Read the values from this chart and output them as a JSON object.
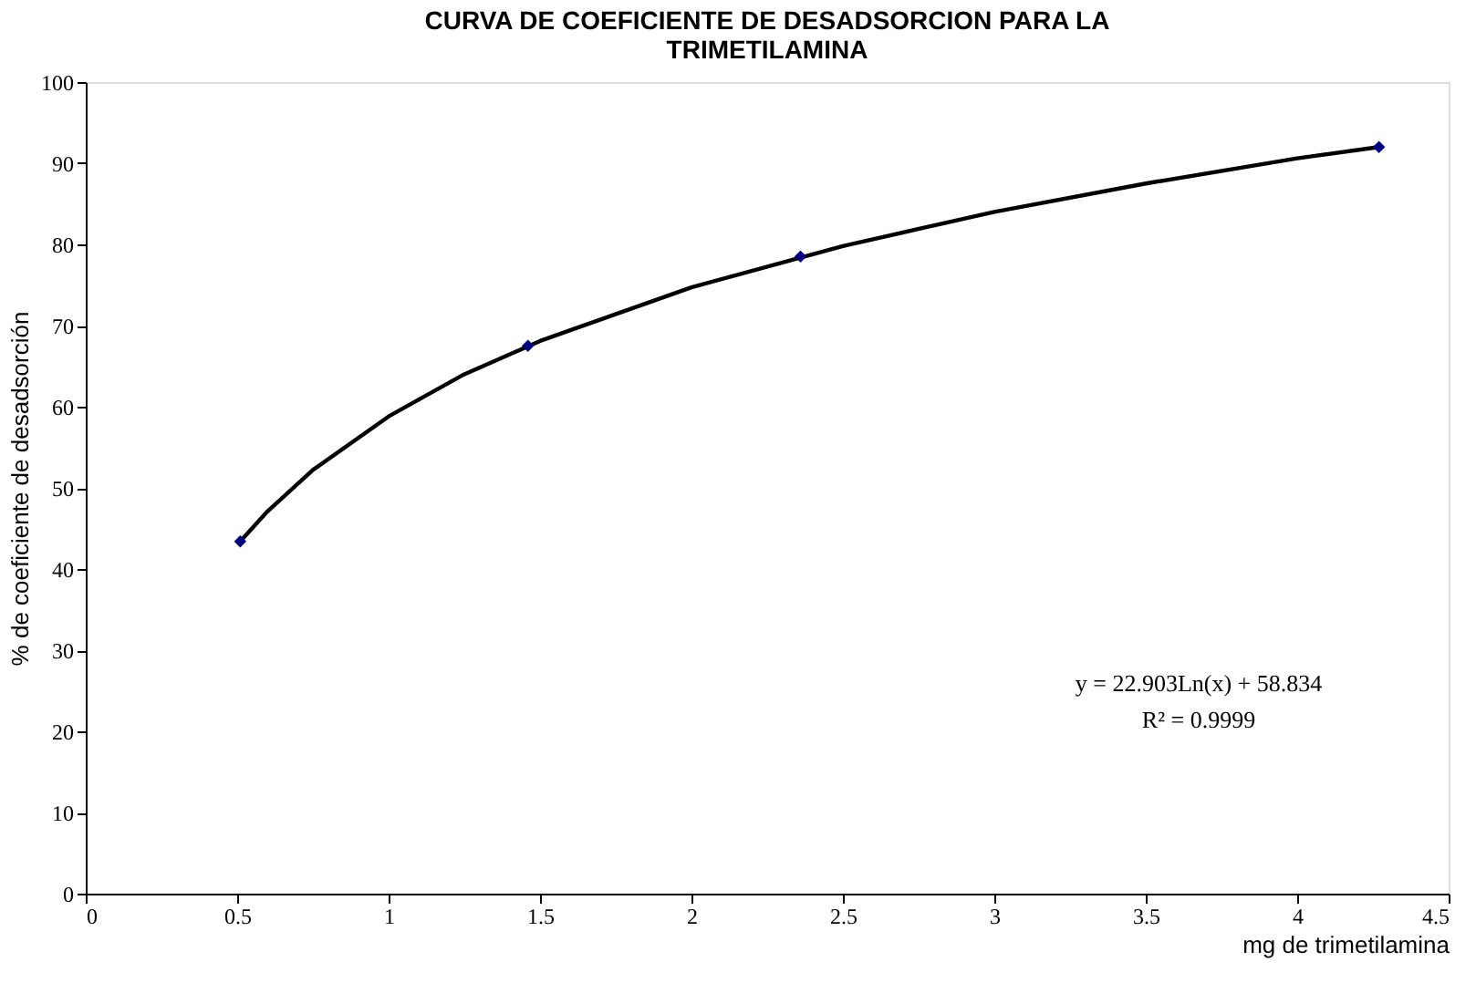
{
  "chart_data": {
    "type": "scatter",
    "title": [
      "CURVA DE COEFICIENTE DE DESADSORCION PARA LA",
      "TRIMETILAMINA"
    ],
    "xlabel": "mg de trimetilamina",
    "ylabel": "% de coeficiente de desadsorción",
    "series": [
      {
        "type": "line",
        "color": "#000000",
        "marker": "none",
        "x": [
          0.51,
          0.6,
          0.75,
          1,
          1.25,
          1.5,
          2,
          2.5,
          3,
          3.5,
          4,
          4.27
        ],
        "values": [
          43.4,
          47.1,
          52.2,
          58.8,
          64.0,
          68.1,
          74.7,
          79.8,
          84.0,
          87.5,
          90.6,
          92.0
        ]
      },
      {
        "color": "#000080",
        "marker": "diamond",
        "x": [
          0.51,
          1.46,
          2.36,
          4.27
        ],
        "values": [
          43.4,
          67.5,
          78.5,
          92.0
        ]
      }
    ],
    "xlim": [
      0,
      4.5
    ],
    "xticks": [
      0,
      0.5,
      1,
      1.5,
      2,
      2.5,
      3,
      3.5,
      4,
      4.5
    ],
    "ylim": [
      0,
      100
    ],
    "yticks": [
      0,
      10,
      20,
      30,
      40,
      50,
      60,
      70,
      80,
      90,
      100
    ],
    "grid": false,
    "annotations": [
      "y = 22.903Ln(x) + 58.834",
      "R² = 0.9999"
    ]
  }
}
